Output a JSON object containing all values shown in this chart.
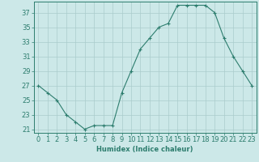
{
  "x": [
    0,
    1,
    2,
    3,
    4,
    5,
    6,
    7,
    8,
    9,
    10,
    11,
    12,
    13,
    14,
    15,
    16,
    17,
    18,
    19,
    20,
    21,
    22,
    23
  ],
  "y": [
    27,
    26,
    25,
    23,
    22,
    21,
    21.5,
    21.5,
    21.5,
    26,
    29,
    32,
    33.5,
    35,
    35.5,
    38,
    38,
    38,
    38,
    37,
    33.5,
    31,
    29,
    27
  ],
  "line_color": "#2d7d6e",
  "marker": "+",
  "marker_size": 3.5,
  "bg_color": "#cce8e8",
  "grid_color": "#aacccc",
  "xlabel": "Humidex (Indice chaleur)",
  "xlim": [
    -0.5,
    23.5
  ],
  "ylim": [
    20.5,
    38.5
  ],
  "yticks": [
    21,
    23,
    25,
    27,
    29,
    31,
    33,
    35,
    37
  ],
  "xticks": [
    0,
    1,
    2,
    3,
    4,
    5,
    6,
    7,
    8,
    9,
    10,
    11,
    12,
    13,
    14,
    15,
    16,
    17,
    18,
    19,
    20,
    21,
    22,
    23
  ],
  "xlabel_fontsize": 6,
  "tick_fontsize": 6,
  "axis_color": "#2d7d6e",
  "spine_color": "#2d7d6e",
  "lw": 0.8,
  "markeredgewidth": 0.8
}
